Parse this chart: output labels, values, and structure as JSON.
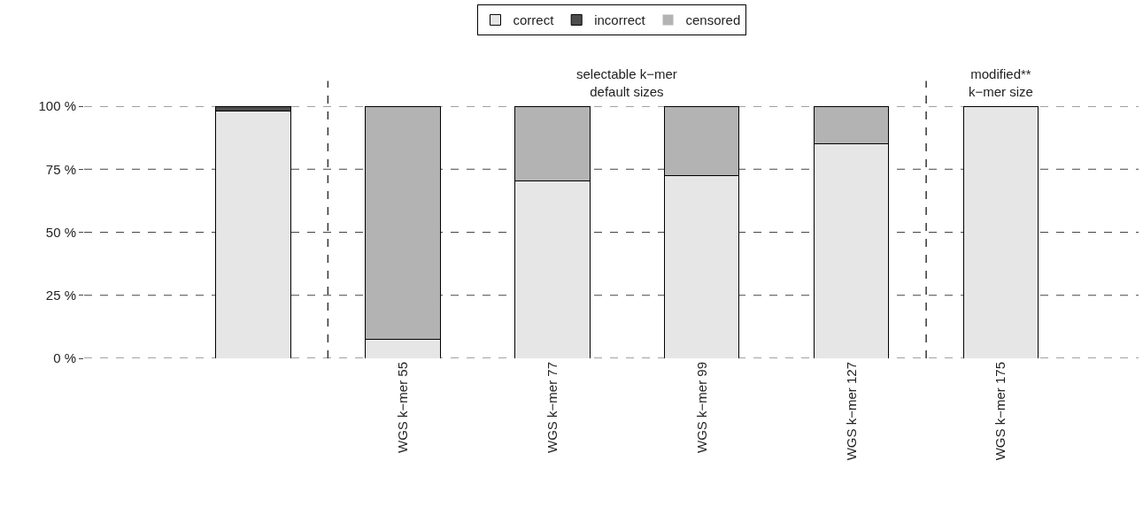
{
  "chart_data": {
    "type": "bar",
    "stacked": true,
    "categories": [
      null,
      "WGS k−mer 55",
      "WGS k−mer 77",
      "WGS k−mer 99",
      "WGS k−mer 127",
      "WGS k−mer 175"
    ],
    "series": [
      {
        "name": "correct",
        "color": "#e6e6e6",
        "values": [
          98,
          7.5,
          70.5,
          72.5,
          85,
          100
        ]
      },
      {
        "name": "incorrect",
        "color": "#4d4d4d",
        "values": [
          2,
          0,
          0,
          0,
          0,
          0
        ]
      },
      {
        "name": "censored",
        "color": "#b3b3b3",
        "values": [
          0,
          92.5,
          29.5,
          27.5,
          15,
          0
        ]
      }
    ],
    "ylim": [
      0,
      100
    ],
    "yticks": [
      {
        "value": 0,
        "label": "0 %"
      },
      {
        "value": 25,
        "label": "25 %"
      },
      {
        "value": 50,
        "label": "50 %"
      },
      {
        "value": 75,
        "label": "75 %"
      },
      {
        "value": 100,
        "label": "100 %"
      }
    ],
    "grid": "y",
    "legend": "top",
    "annotations": [
      "selectable k−mer\ndefault sizes",
      "modified**\nk−mer size"
    ]
  }
}
